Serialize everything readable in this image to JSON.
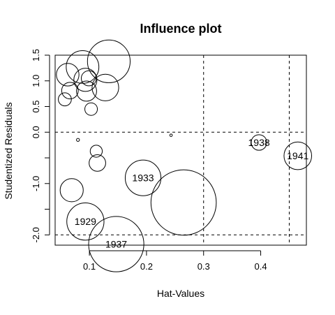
{
  "chart_data": {
    "type": "scatter",
    "title": "Influence plot",
    "xlabel": "Hat-Values",
    "ylabel": "Studentized Residuals",
    "xlim": [
      0.04,
      0.48
    ],
    "ylim": [
      -2.2,
      1.5
    ],
    "x_ticks": [
      0.1,
      0.2,
      0.3,
      0.4
    ],
    "x_tick_labels": [
      "0.1",
      "0.2",
      "0.3",
      "0.4"
    ],
    "y_ticks": [
      -2.0,
      -1.5,
      -1.0,
      -0.5,
      0.0,
      0.5,
      1.0,
      1.5
    ],
    "y_tick_labels": [
      "-2.0",
      "",
      "-1.0",
      "",
      "0.0",
      "0.5",
      "1.0",
      "1.5"
    ],
    "reference_lines": {
      "horizontal": [
        0.0,
        -2.0
      ],
      "vertical": [
        0.3,
        0.45
      ],
      "style": "dashed"
    },
    "marker": "circle-open",
    "marker_size_variable": "Cook's distance (relative)",
    "points": [
      {
        "x": 0.057,
        "y": 0.64,
        "size": 0.26,
        "label": ""
      },
      {
        "x": 0.062,
        "y": 1.12,
        "size": 0.45,
        "label": ""
      },
      {
        "x": 0.066,
        "y": 0.81,
        "size": 0.33,
        "label": ""
      },
      {
        "x": 0.069,
        "y": -1.13,
        "size": 0.46,
        "label": ""
      },
      {
        "x": 0.08,
        "y": -0.15,
        "size": 0.06,
        "label": ""
      },
      {
        "x": 0.088,
        "y": 1.27,
        "size": 0.65,
        "label": ""
      },
      {
        "x": 0.093,
        "y": 1.02,
        "size": 0.46,
        "label": ""
      },
      {
        "x": 0.095,
        "y": 0.8,
        "size": 0.4,
        "label": ""
      },
      {
        "x": 0.099,
        "y": 1.05,
        "size": 0.3,
        "label": ""
      },
      {
        "x": 0.103,
        "y": 0.45,
        "size": 0.25,
        "label": ""
      },
      {
        "x": 0.112,
        "y": -0.37,
        "size": 0.24,
        "label": ""
      },
      {
        "x": 0.114,
        "y": -0.6,
        "size": 0.33,
        "label": ""
      },
      {
        "x": 0.128,
        "y": 0.87,
        "size": 0.53,
        "label": ""
      },
      {
        "x": 0.134,
        "y": 1.38,
        "size": 0.85,
        "label": ""
      },
      {
        "x": 0.093,
        "y": -1.74,
        "size": 0.74,
        "label": "1929"
      },
      {
        "x": 0.147,
        "y": -2.18,
        "size": 1.1,
        "label": "1937"
      },
      {
        "x": 0.194,
        "y": -0.89,
        "size": 0.71,
        "label": "1933"
      },
      {
        "x": 0.243,
        "y": -0.06,
        "size": 0.05,
        "label": ""
      },
      {
        "x": 0.265,
        "y": -1.37,
        "size": 1.3,
        "label": ""
      },
      {
        "x": 0.397,
        "y": -0.2,
        "size": 0.31,
        "label": "1938"
      },
      {
        "x": 0.465,
        "y": -0.46,
        "size": 0.55,
        "label": "1941"
      }
    ]
  }
}
